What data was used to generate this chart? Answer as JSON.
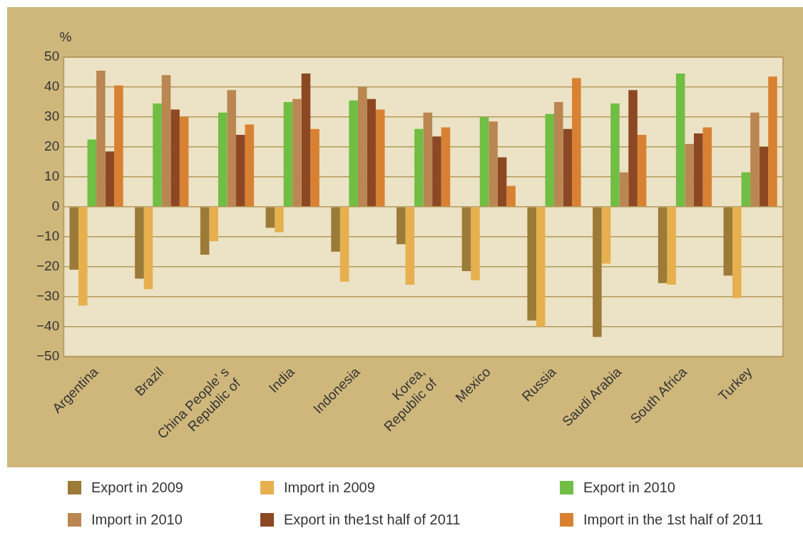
{
  "chart_data": {
    "type": "bar",
    "ylabel": "%",
    "categories": [
      "Argentina",
      "Brazil",
      "China People’ s\nRepublic of",
      "India",
      "Indonesia",
      "Korea,\nRepublic of",
      "Mexico",
      "Russia",
      "Saudi Arabia",
      "South Africa",
      "Turkey"
    ],
    "series": [
      {
        "name": "Export in 2009",
        "color": "#9c7a37",
        "values": [
          -21,
          -24,
          -16,
          -7,
          -15,
          -12.5,
          -21.5,
          -38,
          -43.5,
          -25.5,
          -23
        ]
      },
      {
        "name": "Import in 2009",
        "color": "#e6b04e",
        "values": [
          -33,
          -27.5,
          -11.5,
          -8.5,
          -25,
          -26,
          -24.5,
          -40,
          -19,
          -26,
          -30.5
        ]
      },
      {
        "name": "Export in 2010",
        "color": "#70be44",
        "values": [
          22.5,
          34.5,
          31.5,
          35,
          35.5,
          26,
          30,
          31,
          34.5,
          44.5,
          11.5
        ]
      },
      {
        "name": "Import in 2010",
        "color": "#ba8651",
        "values": [
          45.5,
          44,
          39,
          36,
          40,
          31.5,
          28.5,
          35,
          11.5,
          21,
          31.5
        ]
      },
      {
        "name": "Export in the1st half of 2011",
        "color": "#8c4823",
        "values": [
          18.5,
          32.5,
          24,
          44.5,
          36,
          23.5,
          16.5,
          26,
          39,
          24.5,
          20
        ]
      },
      {
        "name": "Import in the 1st half of 2011",
        "color": "#d98132",
        "values": [
          40.5,
          30,
          27.5,
          26,
          32.5,
          26.5,
          7,
          43,
          24,
          26.5,
          43.5
        ]
      }
    ],
    "ylim": [
      -50,
      50
    ],
    "yticks": [
      -50,
      -40,
      -30,
      -20,
      -10,
      0,
      10,
      20,
      30,
      40,
      50
    ],
    "grid": "y",
    "legend": "bottom"
  }
}
